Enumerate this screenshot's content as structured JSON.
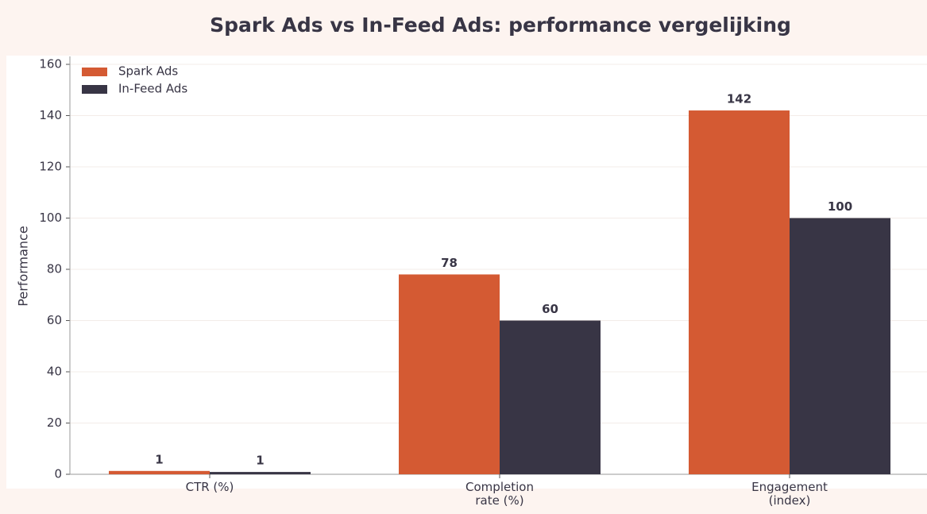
{
  "chart_data": {
    "type": "bar",
    "title": "Spark Ads vs In-Feed Ads: performance vergelijking",
    "y_label": "Performance",
    "categories": [
      "CTR (%)",
      "Completion\nrate (%)",
      "Engagement\n(index)"
    ],
    "series": [
      {
        "name": "Spark Ads",
        "color": "#d45a33",
        "values": [
          1.3,
          78,
          142
        ],
        "value_labels": [
          "1",
          "78",
          "142"
        ]
      },
      {
        "name": "In-Feed Ads",
        "color": "#383545",
        "values": [
          0.9,
          60,
          100
        ],
        "value_labels": [
          "1",
          "60",
          "100"
        ]
      }
    ],
    "ylim": [
      0,
      160
    ],
    "yticks": [
      0,
      20,
      40,
      60,
      80,
      100,
      120,
      140,
      160
    ],
    "grid": true,
    "legend": "upper left"
  }
}
